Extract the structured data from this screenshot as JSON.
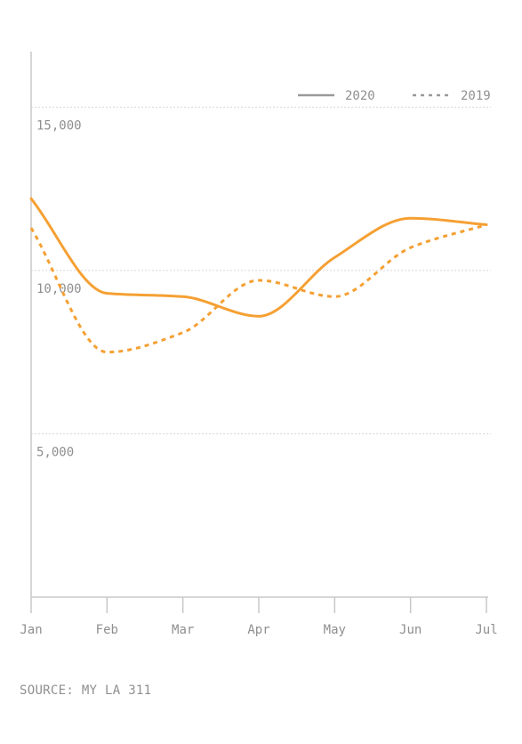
{
  "chart_data": {
    "type": "line",
    "x": [
      "Jan",
      "Feb",
      "Mar",
      "Apr",
      "May",
      "Jun",
      "Jul"
    ],
    "ylim": [
      0,
      16700
    ],
    "yticks": [
      5000,
      10000,
      15000
    ],
    "ytick_labels": [
      "5,000",
      "10,000",
      "15,000"
    ],
    "grid": true,
    "legend_position": "top-right",
    "series": [
      {
        "name": "2020",
        "style": "solid",
        "values": [
          12200,
          9300,
          9200,
          8600,
          10400,
          11600,
          11400
        ]
      },
      {
        "name": "2019",
        "style": "dashed",
        "values": [
          11300,
          7500,
          8100,
          9700,
          9200,
          10700,
          11400
        ]
      }
    ]
  },
  "colors": {
    "line": "#F5A033",
    "axis": "#c8c8c8",
    "grid": "#d6d6d6",
    "text": "#8f8f8f"
  },
  "source": "SOURCE: MY LA 311"
}
